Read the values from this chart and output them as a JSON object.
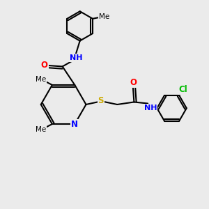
{
  "bg_color": "#ebebeb",
  "atom_color_N": "#0000ff",
  "atom_color_O": "#ff0000",
  "atom_color_S": "#ccaa00",
  "atom_color_Cl": "#00bb00",
  "bond_color": "#000000",
  "bond_width": 1.5,
  "figsize": [
    3.0,
    3.0
  ],
  "dpi": 100,
  "xlim": [
    0,
    10
  ],
  "ylim": [
    0,
    10
  ]
}
